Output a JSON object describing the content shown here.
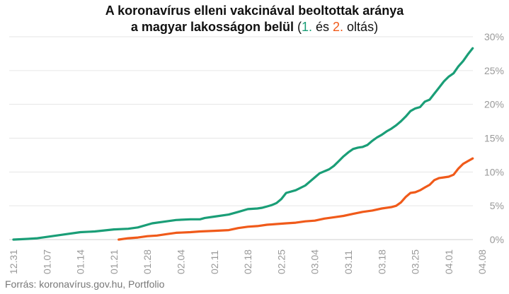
{
  "title": {
    "line1": "A koronavírus elleni vakcinával beoltottak aránya",
    "line2_main": "a magyar lakosságon belül",
    "paren_open": " (",
    "legend1": "1.",
    "and": " és ",
    "legend2": "2.",
    "tail": " oltás)"
  },
  "source": "Forrás: koronavírus.gov.hu, Portfolio",
  "colors": {
    "first_dose": "#1a9e77",
    "second_dose": "#f05a1a",
    "axis_text": "#999999",
    "grid": "#e6e6e6"
  },
  "chart_data": {
    "type": "line",
    "x_ticks": [
      "12.31",
      "01.07",
      "01.14",
      "01.21",
      "01.28",
      "02.04",
      "02.11",
      "02.18",
      "02.25",
      "03.04",
      "03.11",
      "03.18",
      "03.25",
      "04.01",
      "04.08"
    ],
    "y_ticks": [
      "0%",
      "5%",
      "10%",
      "15%",
      "20%",
      "25%",
      "30%"
    ],
    "ylim": [
      0,
      30
    ],
    "y_unit": "%",
    "grid": true,
    "series": [
      {
        "name": "1.",
        "color": "#1a9e77",
        "points": [
          [
            0,
            0
          ],
          [
            3,
            0.1
          ],
          [
            5,
            0.2
          ],
          [
            7,
            0.4
          ],
          [
            10,
            0.7
          ],
          [
            14,
            1.1
          ],
          [
            17,
            1.2
          ],
          [
            21,
            1.5
          ],
          [
            24,
            1.6
          ],
          [
            26,
            1.8
          ],
          [
            29,
            2.4
          ],
          [
            32,
            2.7
          ],
          [
            34,
            2.9
          ],
          [
            37,
            3.0
          ],
          [
            39,
            3.0
          ],
          [
            40,
            3.2
          ],
          [
            42,
            3.4
          ],
          [
            45,
            3.7
          ],
          [
            47,
            4.1
          ],
          [
            49,
            4.5
          ],
          [
            51,
            4.6
          ],
          [
            52,
            4.7
          ],
          [
            54,
            5.1
          ],
          [
            55,
            5.4
          ],
          [
            56,
            6.0
          ],
          [
            57,
            6.9
          ],
          [
            59,
            7.3
          ],
          [
            61,
            8.0
          ],
          [
            63,
            9.2
          ],
          [
            64,
            9.8
          ],
          [
            66,
            10.4
          ],
          [
            67,
            10.9
          ],
          [
            68,
            11.6
          ],
          [
            69,
            12.3
          ],
          [
            70,
            12.9
          ],
          [
            71,
            13.4
          ],
          [
            72,
            13.6
          ],
          [
            73,
            13.7
          ],
          [
            74,
            14.0
          ],
          [
            75,
            14.6
          ],
          [
            76,
            15.1
          ],
          [
            77,
            15.5
          ],
          [
            78,
            16.0
          ],
          [
            79,
            16.4
          ],
          [
            80,
            16.9
          ],
          [
            81,
            17.5
          ],
          [
            82,
            18.2
          ],
          [
            83,
            19.0
          ],
          [
            84,
            19.4
          ],
          [
            85,
            19.6
          ],
          [
            86,
            20.4
          ],
          [
            87,
            20.7
          ],
          [
            88,
            21.6
          ],
          [
            89,
            22.5
          ],
          [
            90,
            23.4
          ],
          [
            91,
            24.1
          ],
          [
            92,
            24.6
          ],
          [
            93,
            25.6
          ],
          [
            94,
            26.4
          ],
          [
            95,
            27.4
          ],
          [
            96,
            28.3
          ]
        ]
      },
      {
        "name": "2.",
        "color": "#f05a1a",
        "points": [
          [
            22,
            0
          ],
          [
            24,
            0.2
          ],
          [
            26,
            0.3
          ],
          [
            28,
            0.5
          ],
          [
            30,
            0.6
          ],
          [
            32,
            0.8
          ],
          [
            34,
            1.0
          ],
          [
            37,
            1.1
          ],
          [
            39,
            1.2
          ],
          [
            42,
            1.3
          ],
          [
            45,
            1.4
          ],
          [
            47,
            1.7
          ],
          [
            49,
            1.9
          ],
          [
            51,
            2.0
          ],
          [
            53,
            2.2
          ],
          [
            55,
            2.3
          ],
          [
            57,
            2.4
          ],
          [
            59,
            2.5
          ],
          [
            61,
            2.7
          ],
          [
            63,
            2.8
          ],
          [
            65,
            3.1
          ],
          [
            67,
            3.3
          ],
          [
            69,
            3.5
          ],
          [
            71,
            3.8
          ],
          [
            73,
            4.1
          ],
          [
            75,
            4.3
          ],
          [
            77,
            4.6
          ],
          [
            79,
            4.8
          ],
          [
            80,
            5.0
          ],
          [
            81,
            5.5
          ],
          [
            82,
            6.3
          ],
          [
            83,
            6.9
          ],
          [
            84,
            7.0
          ],
          [
            85,
            7.3
          ],
          [
            86,
            7.7
          ],
          [
            87,
            8.1
          ],
          [
            88,
            8.8
          ],
          [
            89,
            9.1
          ],
          [
            90,
            9.2
          ],
          [
            91,
            9.3
          ],
          [
            92,
            9.6
          ],
          [
            93,
            10.5
          ],
          [
            94,
            11.2
          ],
          [
            95,
            11.6
          ],
          [
            96,
            12.0
          ]
        ]
      }
    ]
  }
}
